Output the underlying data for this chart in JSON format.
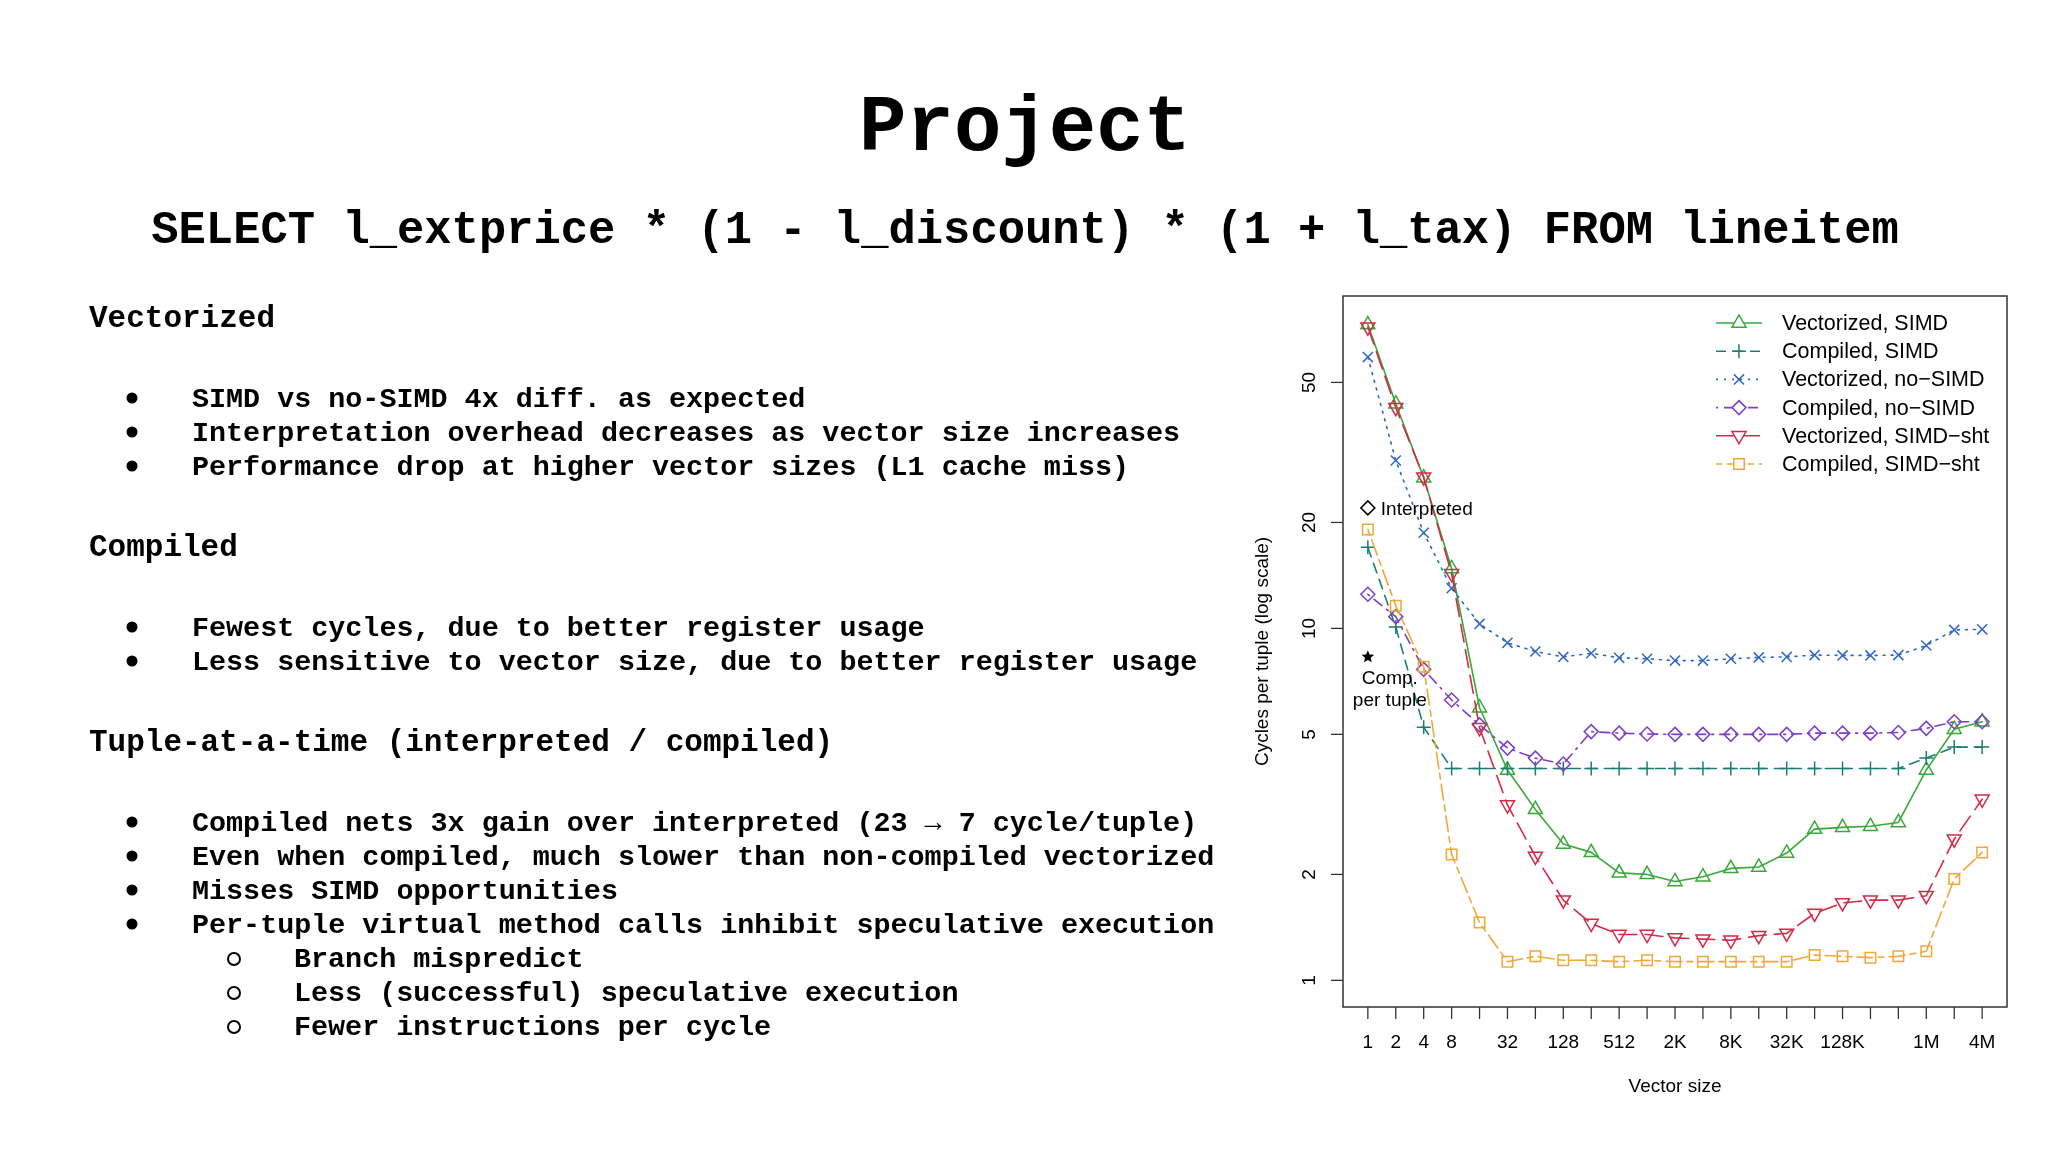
{
  "chart_data": [
    {
      "type": "other",
      "title": "Project",
      "subtitle": "SELECT l_extprice * (1 - l_discount) * (1 + l_tax) FROM lineitem",
      "annotations": [
        "Vectorized",
        "SIMD vs no-SIMD 4x diff. as expected",
        "Interpretation overhead decreases as vector size increases",
        "Performance drop at higher vector sizes (L1 cache miss)",
        "Compiled",
        "Fewest cycles, due to better register usage",
        "Less sensitive to vector size, due to better register usage",
        "Tuple-at-a-time (interpreted / compiled)",
        "Compiled nets 3x gain over interpreted (23 → 7 cycle/tuple)",
        "Even when compiled, much slower than non-compiled vectorized",
        "Misses SIMD opportunities",
        "Per-tuple virtual method calls inhibit speculative execution",
        "Branch mispredict",
        "Less (successful) speculative execution",
        "Fewer instructions per cycle"
      ]
    },
    {
      "type": "line",
      "xlabel": "Vector size",
      "ylabel": "Cycles per tuple (log scale)",
      "categories": [
        "1",
        "2",
        "4",
        "8",
        null,
        "32",
        null,
        "128",
        null,
        "512",
        null,
        "2K",
        null,
        "8K",
        null,
        "32K",
        null,
        "128K",
        null,
        null,
        "1M",
        null,
        "4M"
      ],
      "log": "y",
      "ylim": [
        0.84,
        88
      ],
      "yticks": [
        1,
        2,
        5,
        10,
        20,
        50
      ],
      "legend": "top right",
      "series": [
        {
          "name": "Vectorized, SIMD",
          "color": "#3aa83a",
          "line_style": "solid",
          "marker": "triangle",
          "values": [
            73,
            43.5,
            26.8,
            14.8,
            5.95,
            3.96,
            3.06,
            2.44,
            2.31,
            2.02,
            2.0,
            1.91,
            1.97,
            2.08,
            2.1,
            2.3,
            2.69,
            2.72,
            2.74,
            2.81,
            3.96,
            5.17,
            5.43
          ]
        },
        {
          "name": "Compiled, SIMD",
          "color": "#1a7f70",
          "line_style": "dashed",
          "marker": "cross",
          "values": [
            17.0,
            10.1,
            5.24,
            4.0,
            4.0,
            4.0,
            4.0,
            4.0,
            4.0,
            4.0,
            4.0,
            4.0,
            4.0,
            4.0,
            4.0,
            4.0,
            4.0,
            4.0,
            4.0,
            4.0,
            4.28,
            4.6,
            4.6
          ]
        },
        {
          "name": "Vectorized, no−SIMD",
          "color": "#2f68c2",
          "line_style": "dotted",
          "marker": "x",
          "values": [
            59,
            30,
            18.7,
            13.0,
            10.3,
            9.1,
            8.6,
            8.3,
            8.5,
            8.25,
            8.2,
            8.1,
            8.1,
            8.2,
            8.27,
            8.3,
            8.4,
            8.38,
            8.38,
            8.4,
            8.94,
            9.9,
            9.94
          ]
        },
        {
          "name": "Compiled, no−SIMD",
          "color": "#7d3fc4",
          "line_style": "dashdot",
          "marker": "diamond",
          "values": [
            12.5,
            10.8,
            7.65,
            6.26,
            5.32,
            4.57,
            4.28,
            4.12,
            5.09,
            5.04,
            5.01,
            5.0,
            5.0,
            5.0,
            5.0,
            5.0,
            5.04,
            5.04,
            5.04,
            5.06,
            5.2,
            5.43,
            5.43
          ]
        },
        {
          "name": "Vectorized, SIMD−sht",
          "color": "#d42a48",
          "line_style": "longdash",
          "marker": "triangle-down",
          "values": [
            71.8,
            42.4,
            26.9,
            14.3,
            5.22,
            3.15,
            2.25,
            1.69,
            1.45,
            1.35,
            1.35,
            1.32,
            1.31,
            1.3,
            1.34,
            1.36,
            1.55,
            1.66,
            1.69,
            1.69,
            1.74,
            2.52,
            3.27
          ]
        },
        {
          "name": "Compiled, SIMD−sht",
          "color": "#f0a838",
          "line_style": "twodash",
          "marker": "square",
          "values": [
            19.1,
            11.6,
            7.78,
            2.28,
            1.46,
            1.13,
            1.17,
            1.14,
            1.14,
            1.13,
            1.14,
            1.13,
            1.13,
            1.13,
            1.13,
            1.13,
            1.18,
            1.17,
            1.16,
            1.17,
            1.21,
            1.94,
            2.31
          ]
        },
        {
          "type": "scatter",
          "color": "#000000",
          "marker": "diamond",
          "x": [
            "1"
          ],
          "values": [
            22
          ]
        },
        {
          "type": "scatter",
          "color": "#000000",
          "marker": "star",
          "x": [
            "1"
          ],
          "values": [
            8.3
          ]
        }
      ],
      "annotations": [
        {
          "text": "Interpreted",
          "x": "1",
          "y": 22
        },
        {
          "text": "Comp.\nper tuple",
          "x": "1",
          "y": 8.3
        }
      ]
    }
  ]
}
